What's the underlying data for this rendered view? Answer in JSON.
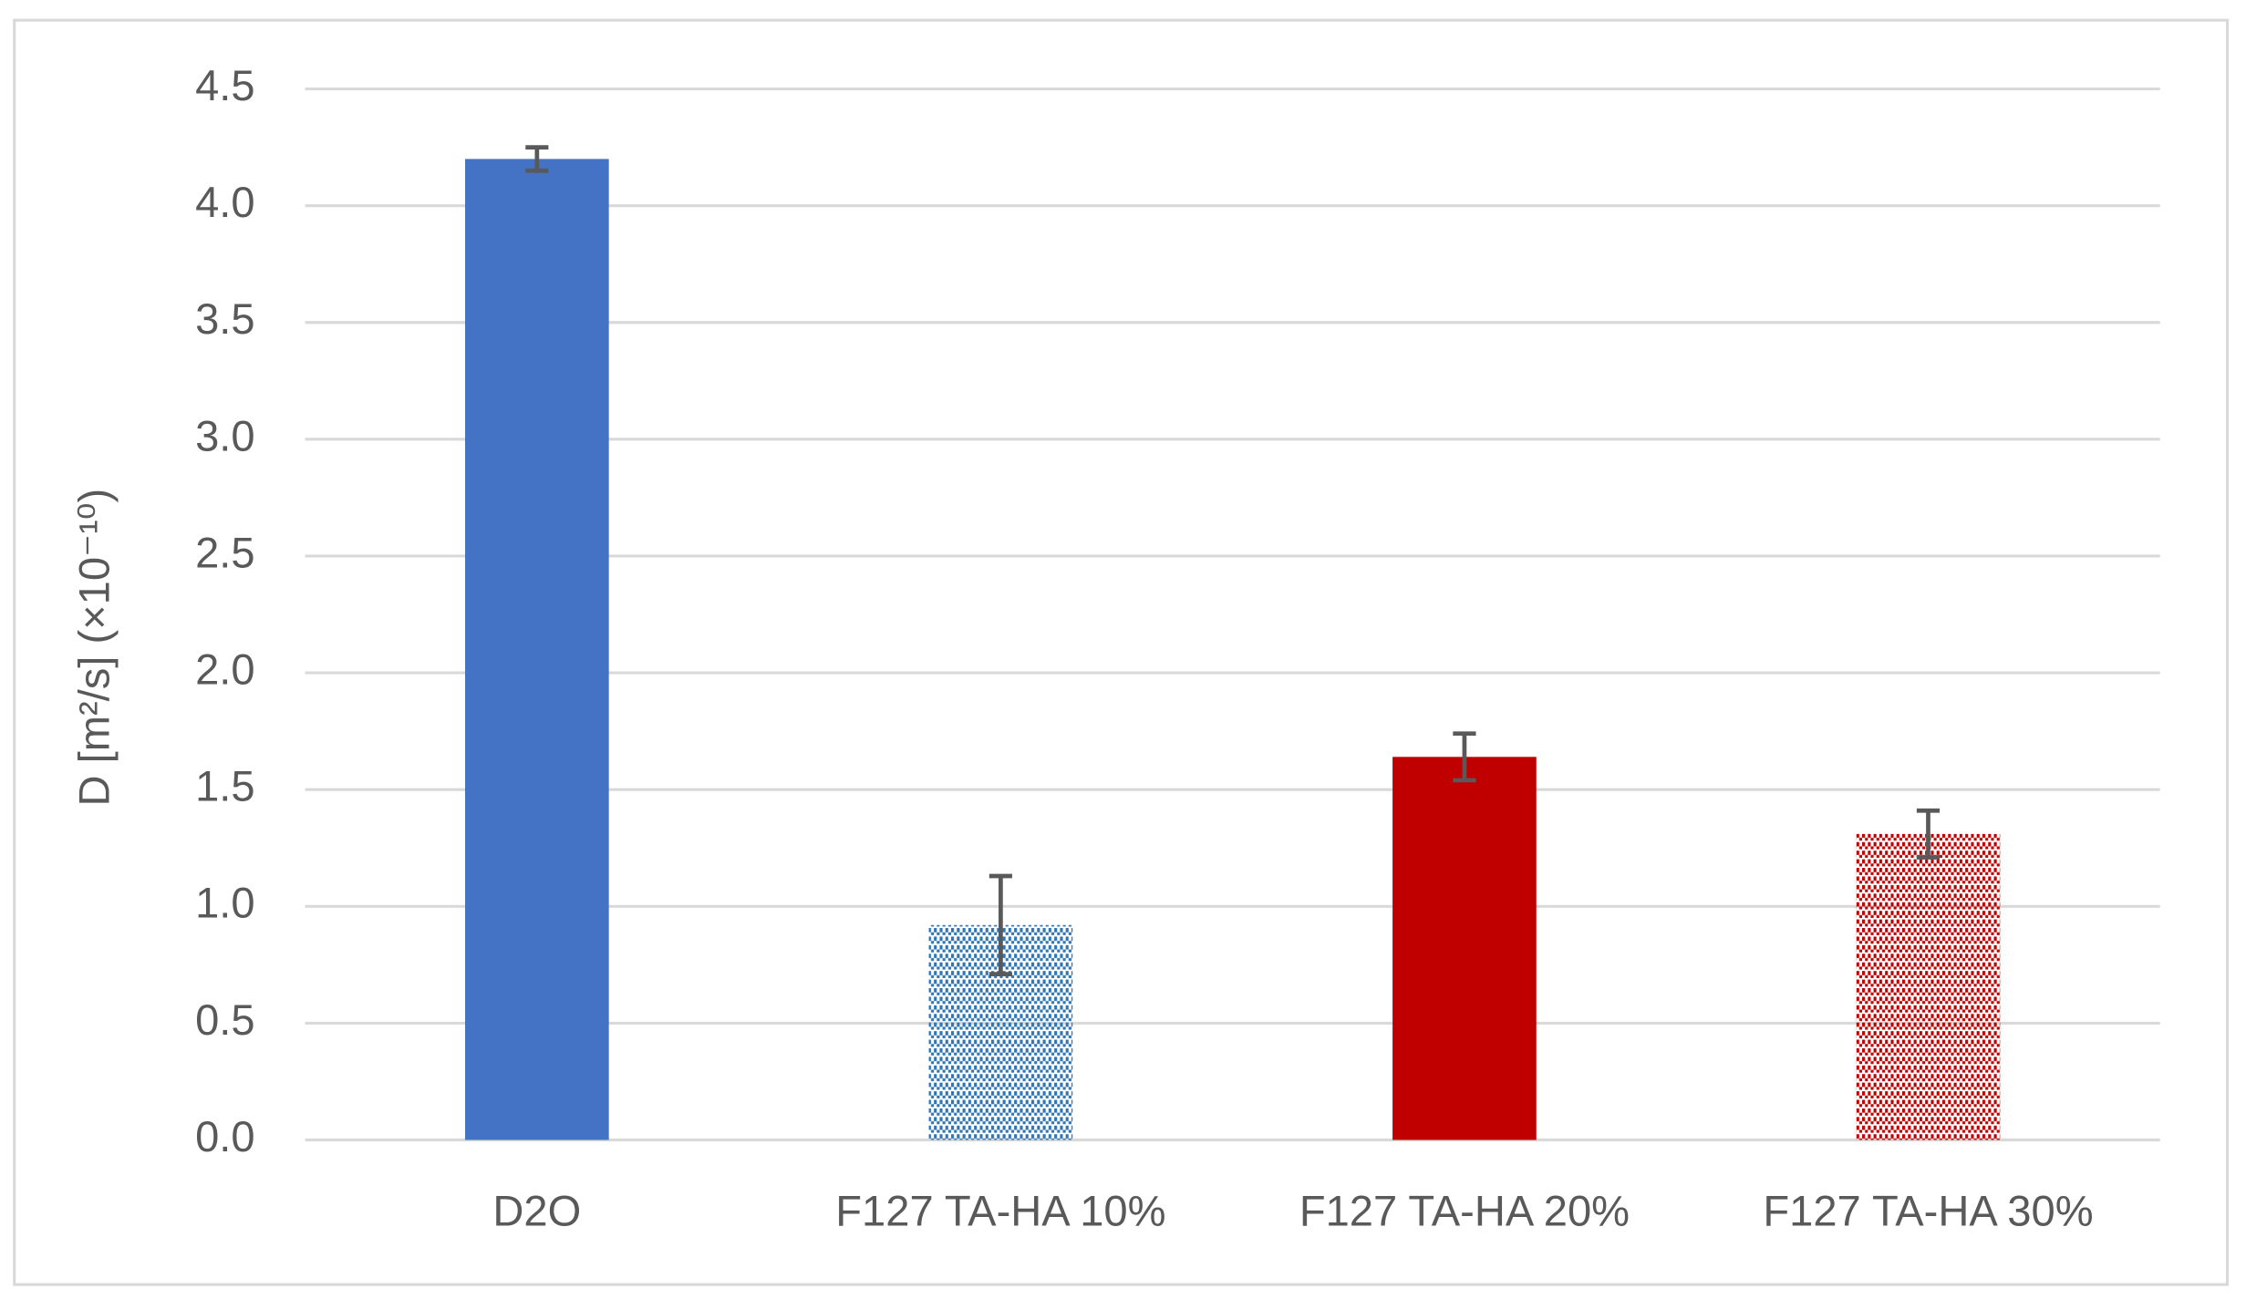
{
  "chart_data": {
    "type": "bar",
    "y_label": "D [m²/s] (×10⁻¹⁰)",
    "categories": [
      "D2O",
      "F127 TA-HA 10%",
      "F127 TA-HA 20%",
      "F127 TA-HA 30%"
    ],
    "values": [
      4.2,
      0.92,
      1.64,
      1.31
    ],
    "errors": [
      0.05,
      0.21,
      0.1,
      0.1
    ],
    "colors": [
      "#4472c4",
      "#2e75b6",
      "#c00000",
      "#c00000"
    ],
    "patterned": [
      false,
      true,
      false,
      true
    ],
    "ylim": [
      0,
      4.5
    ],
    "yticks": [
      {
        "value": 0,
        "label": "0.0"
      },
      0.5,
      {
        "value": 1,
        "label": "1.0"
      },
      1.5,
      {
        "value": 2,
        "label": "2.0"
      },
      2.5,
      {
        "value": 3,
        "label": "3.0"
      },
      3.5,
      {
        "value": 4,
        "label": "4.0"
      },
      4.5
    ],
    "grid": true
  }
}
